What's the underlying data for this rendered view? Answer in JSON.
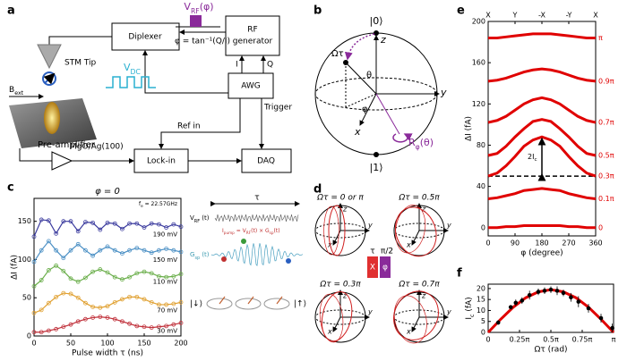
{
  "panel_a": {
    "label": "a",
    "vrf": [
      "V",
      "RF",
      "(φ)"
    ],
    "phase_formula": "φ = tan⁻¹(Q/I)",
    "diplexer": "Diplexer",
    "rf_generator": [
      "RF",
      "generator"
    ],
    "stm_tip": "STM Tip",
    "bext": [
      "B",
      "ext"
    ],
    "vdc": [
      "V",
      "DC"
    ],
    "i": "I",
    "q": "Q",
    "awg": "AWG",
    "ref_in": "Ref in",
    "trigger": "Trigger",
    "sample": "MgO/Ag(100)",
    "preamp": "Pre-amplifier",
    "lockin": "Lock-in",
    "daq": "DAQ"
  },
  "panel_b": {
    "label": "b",
    "ket0": "|0⟩",
    "ket1": "|1⟩",
    "z": "z",
    "y": "y",
    "x": "x",
    "omega_tau": "Ωτ",
    "theta": "θ",
    "phi": "φ",
    "rotation": [
      "R",
      "φ",
      "(θ)"
    ]
  },
  "panel_c": {
    "label": "c",
    "tau": "τ",
    "vrf_t": [
      "V",
      "RF",
      " (t)"
    ],
    "pump": [
      "I",
      "pump",
      " = V",
      "RF",
      "(t) × G",
      "sp",
      "(t)"
    ],
    "gsp_t": [
      "G",
      "sp",
      " (t)"
    ],
    "down": "|↓⟩",
    "up": "|↑⟩"
  },
  "panel_d": {
    "label": "d",
    "titles": [
      "Ωτ = 0 or π",
      "Ωτ = 0.5π",
      "Ωτ = 0.3π",
      "Ωτ = 0.7π"
    ],
    "axes": [
      "z",
      "y",
      "x"
    ],
    "pulse": {
      "tau": "τ",
      "x": "X",
      "half_pi": "π/2",
      "phi": "φ"
    }
  },
  "panel_e": {
    "label": "e"
  },
  "panel_f": {
    "label": "f"
  },
  "chart_data": [
    {
      "type": "line",
      "title": "φ = 0",
      "annotation": [
        "f",
        "e",
        " = 22.57GHz"
      ],
      "x_label": "Pulse width τ (ns)",
      "y_label": "ΔI (fA)",
      "marker": "open-circle",
      "x": [
        0,
        10,
        20,
        30,
        40,
        50,
        60,
        70,
        80,
        90,
        100,
        110,
        120,
        130,
        140,
        150,
        160,
        170,
        180,
        190,
        200
      ],
      "xlim": [
        0,
        200
      ],
      "ylim": [
        0,
        180
      ],
      "xticks": [
        0,
        50,
        100,
        150,
        200
      ],
      "yticks": [
        0,
        50,
        100,
        150
      ],
      "series": [
        {
          "name": "190 mV",
          "color": "#3b3b9e",
          "values": [
            130,
            152,
            151,
            134,
            150,
            150,
            137,
            149,
            148,
            139,
            148,
            147,
            140,
            147,
            147,
            142,
            147,
            146,
            142,
            146,
            143
          ]
        },
        {
          "name": "150 mV",
          "color": "#4a8fc4",
          "values": [
            97,
            112,
            124,
            112,
            102,
            112,
            120,
            112,
            105,
            112,
            117,
            112,
            108,
            112,
            115,
            112,
            109,
            112,
            114,
            112,
            110
          ]
        },
        {
          "name": "110 mV",
          "color": "#6aae4a",
          "values": [
            65,
            73,
            86,
            92,
            85,
            75,
            71,
            76,
            84,
            87,
            83,
            77,
            74,
            77,
            82,
            84,
            82,
            78,
            77,
            78,
            81
          ]
        },
        {
          "name": "70 mV",
          "color": "#e0a030",
          "values": [
            30,
            34,
            43,
            51,
            56,
            55,
            50,
            43,
            38,
            37,
            39,
            44,
            48,
            51,
            51,
            48,
            44,
            41,
            41,
            42,
            44
          ]
        },
        {
          "name": "30 mV",
          "color": "#c0303a",
          "values": [
            5,
            5,
            7,
            9,
            12,
            15,
            19,
            22,
            24,
            25,
            24,
            22,
            19,
            16,
            13,
            12,
            11,
            12,
            13,
            15,
            17
          ]
        }
      ]
    },
    {
      "type": "line",
      "x_label": "φ (degree)",
      "y_label": "ΔI (fA)",
      "line_width": 3,
      "x": [
        0,
        30,
        60,
        90,
        120,
        150,
        180,
        210,
        240,
        270,
        300,
        330,
        360
      ],
      "xlim": [
        0,
        360
      ],
      "ylim": [
        -8,
        200
      ],
      "xticks": [
        0,
        90,
        180,
        270,
        360
      ],
      "yticks": [
        0,
        40,
        80,
        120,
        160,
        200
      ],
      "top_ticks": [
        {
          "value": 0,
          "label": "X"
        },
        {
          "value": 90,
          "label": "Y"
        },
        {
          "value": 180,
          "label": "-X"
        },
        {
          "value": 270,
          "label": "-Y"
        },
        {
          "value": 360,
          "label": "X"
        }
      ],
      "reference_line": 50,
      "annotation": [
        "2I",
        "c"
      ],
      "series": [
        {
          "name": "π",
          "color": "#e00000",
          "values": [
            184,
            184,
            185,
            186,
            187,
            188,
            188,
            188,
            187,
            186,
            185,
            184,
            184
          ]
        },
        {
          "name": "0.9π",
          "color": "#e00000",
          "values": [
            142,
            143,
            145,
            148,
            151,
            153,
            154,
            153,
            151,
            148,
            145,
            143,
            142
          ]
        },
        {
          "name": "0.7π",
          "color": "#e00000",
          "values": [
            102,
            104,
            108,
            114,
            120,
            124,
            126,
            124,
            120,
            114,
            108,
            104,
            102
          ]
        },
        {
          "name": "0.5π",
          "color": "#e00000",
          "values": [
            70,
            72,
            79,
            88,
            96,
            103,
            105,
            103,
            96,
            88,
            79,
            72,
            70
          ]
        },
        {
          "name": "0.3π",
          "color": "#e00000",
          "values": [
            50,
            53,
            60,
            69,
            79,
            85,
            88,
            85,
            79,
            69,
            60,
            53,
            50
          ]
        },
        {
          "name": "0.1π",
          "color": "#e00000",
          "values": [
            28,
            29,
            31,
            33,
            36,
            37,
            38,
            37,
            36,
            33,
            31,
            29,
            28
          ]
        },
        {
          "name": "0",
          "color": "#e00000",
          "values": [
            0,
            0,
            1,
            1,
            2,
            2,
            2,
            2,
            2,
            1,
            1,
            0,
            0
          ]
        }
      ]
    },
    {
      "type": "scatter",
      "x_label": "Ωτ (rad)",
      "y_label": [
        "I",
        "c",
        " (fA)"
      ],
      "xlim": [
        0,
        1
      ],
      "ylim": [
        0,
        22
      ],
      "xticks": [
        0,
        {
          "value": 0.25,
          "label": "0.25π"
        },
        {
          "value": 0.5,
          "label": "0.5π"
        },
        {
          "value": 0.75,
          "label": "0.75π"
        },
        {
          "value": 1,
          "label": "π"
        }
      ],
      "yticks": [
        0,
        5,
        10,
        15,
        20
      ],
      "series": [
        {
          "color": "#e00000",
          "style": "line",
          "x": [
            0,
            0.1,
            0.2,
            0.3,
            0.4,
            0.5,
            0.6,
            0.7,
            0.8,
            0.9,
            1
          ],
          "values": [
            0,
            6,
            11.5,
            15.8,
            18.5,
            19.5,
            18.5,
            15.8,
            11.5,
            6,
            0
          ]
        },
        {
          "color": "#000000",
          "style": "points",
          "x": [
            0.08,
            0.18,
            0.22,
            0.27,
            0.33,
            0.4,
            0.45,
            0.5,
            0.55,
            0.6,
            0.66,
            0.72,
            0.8,
            0.9,
            0.99
          ],
          "values": [
            4.5,
            11.5,
            13.5,
            14.5,
            17,
            18.5,
            19,
            19.5,
            19,
            18,
            16,
            14,
            11,
            6.5,
            2
          ],
          "errors": [
            1,
            1,
            1.5,
            1.5,
            2,
            1.5,
            1.5,
            1.5,
            2,
            1.5,
            2,
            2.5,
            2,
            2,
            2
          ]
        }
      ]
    }
  ]
}
